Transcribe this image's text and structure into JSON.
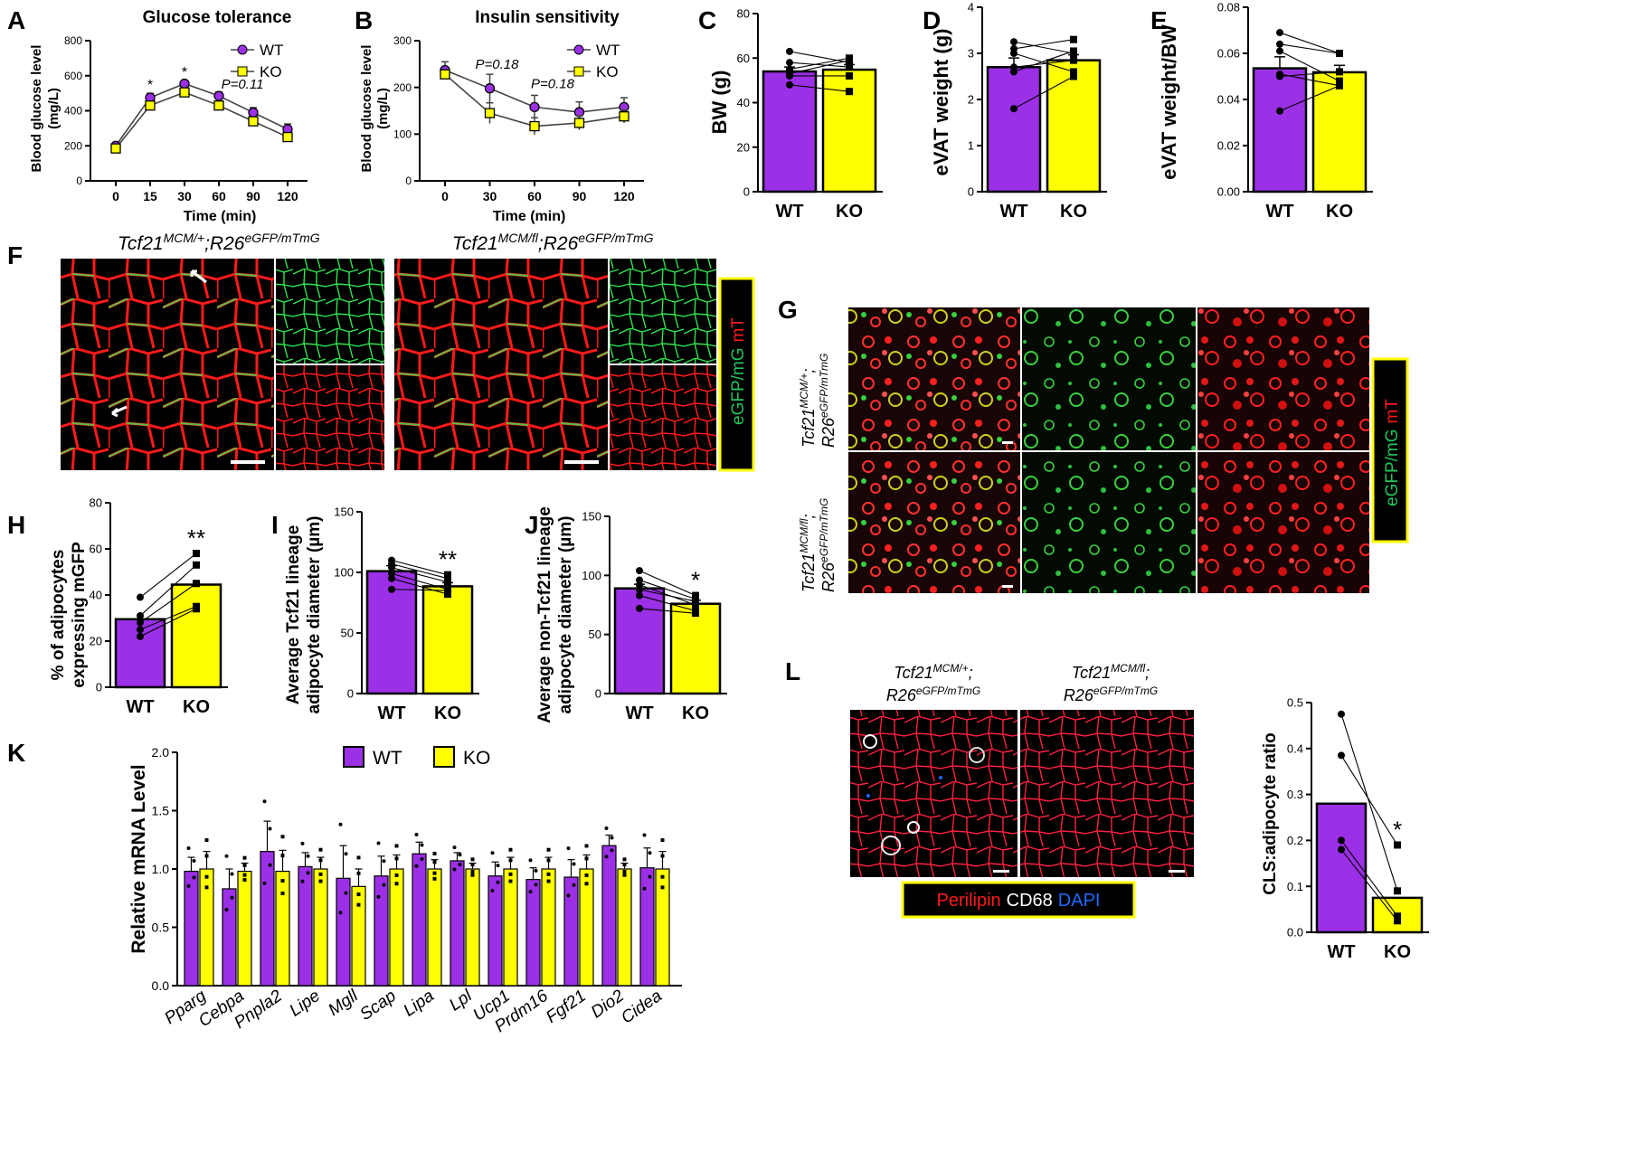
{
  "colors": {
    "wt": "#9b30e6",
    "ko": "#ffff00",
    "box": "#ffff00",
    "red": "#ff1a1a",
    "green": "#22c55e",
    "blue": "#1e6bff",
    "white": "#ffffff"
  },
  "panels": {
    "A": {
      "letter": "A",
      "title": "Glucose tolerance",
      "ylabel": "Blood glucose level",
      "yunit": "(mg/L)",
      "xlabel": "Time (min)",
      "annotation": "P=0.11",
      "star": "*"
    },
    "B": {
      "letter": "B",
      "title": "Insulin sensitivity",
      "ylabel": "Blood glucose level",
      "yunit": "(mg/L)",
      "xlabel": "Time (min)",
      "ann1": "P=0.18",
      "ann2": "P=0.18"
    },
    "C": {
      "letter": "C",
      "ylabel": "BW (g)"
    },
    "D": {
      "letter": "D",
      "ylabel": "eVAT weight (g)"
    },
    "E": {
      "letter": "E",
      "ylabel": "eVAT weight/BW"
    },
    "F": {
      "letter": "F",
      "label1": "Tcf21",
      "sup1a": "MCM/+",
      "mid1": ";R26",
      "sup1b": "eGFP/mTmG",
      "label2": "Tcf21",
      "sup2a": "MCM/fl",
      "mid2": ";R26",
      "sup2b": "eGFP/mTmG",
      "legend_a": "eGFP/mG",
      "legend_b": "mT"
    },
    "G": {
      "letter": "G",
      "row1a": "Tcf21",
      "row1a_sup": "MCM/+",
      "row1b": "R26",
      "row1b_sup": "eGFP/mTmG",
      "row2a": "Tcf21",
      "row2a_sup": "MCM/fl",
      "row2b": "R26",
      "row2b_sup": "eGFP/mTmG",
      "legend_a": "eGFP/mG",
      "legend_b": "mT"
    },
    "H": {
      "letter": "H",
      "ylabel1": "% of adipocytes",
      "ylabel2": "expressing mGFP",
      "star": "**"
    },
    "I": {
      "letter": "I",
      "ylabel1": "Average Tcf21 lineage",
      "ylabel2": "adipocyte diameter (µm)",
      "star": "**"
    },
    "J": {
      "letter": "J",
      "ylabel1": "Average non-Tcf21 lineage",
      "ylabel2": "adipocyte diameter (µm)",
      "star": "*"
    },
    "K": {
      "letter": "K",
      "ylabel": "Relative mRNA Level",
      "legend_wt": "WT",
      "legend_ko": "KO"
    },
    "L": {
      "letter": "L",
      "label1a": "Tcf21",
      "label1a_sup": "MCM/+",
      "label1b": "R26",
      "label1b_sup": "eGFP/mTmG",
      "label2a": "Tcf21",
      "label2a_sup": "MCM/fl",
      "label2b": "R26",
      "label2b_sup": "eGFP/mTmG",
      "legend_a": "Perilipin",
      "legend_b": "CD68",
      "legend_c": "DAPI",
      "ylabel": "CLS:adipocyte ratio",
      "star": "*"
    }
  },
  "chart_data": [
    {
      "id": "A",
      "type": "line",
      "x": [
        0,
        15,
        30,
        60,
        90,
        120
      ],
      "xticks": [
        "0",
        "15",
        "30",
        "60",
        "90",
        "120"
      ],
      "ylim": [
        0,
        800
      ],
      "yticks": [
        "0",
        "200",
        "400",
        "600",
        "800"
      ],
      "series": [
        {
          "name": "WT",
          "values": [
            200,
            475,
            555,
            485,
            390,
            295
          ],
          "err": [
            15,
            25,
            18,
            22,
            28,
            30
          ]
        },
        {
          "name": "KO",
          "values": [
            185,
            430,
            505,
            430,
            340,
            250
          ],
          "err": [
            12,
            15,
            15,
            18,
            20,
            20
          ]
        }
      ]
    },
    {
      "id": "B",
      "type": "line",
      "x": [
        0,
        30,
        60,
        90,
        120
      ],
      "xticks": [
        "0",
        "30",
        "60",
        "90",
        "120"
      ],
      "ylim": [
        0,
        300
      ],
      "yticks": [
        "0",
        "100",
        "200",
        "300"
      ],
      "series": [
        {
          "name": "WT",
          "values": [
            237,
            198,
            158,
            147,
            158
          ],
          "err": [
            18,
            30,
            25,
            22,
            20
          ]
        },
        {
          "name": "KO",
          "values": [
            228,
            145,
            117,
            124,
            138
          ],
          "err": [
            10,
            22,
            18,
            15,
            14
          ]
        }
      ]
    },
    {
      "id": "C",
      "type": "bar",
      "categories": [
        "WT",
        "KO"
      ],
      "ylim": [
        0,
        80
      ],
      "yticks": [
        "0",
        "20",
        "40",
        "60",
        "80"
      ],
      "values": [
        54,
        54.8
      ],
      "err": [
        2.0,
        2.3
      ],
      "pairs": [
        [
          63,
          58
        ],
        [
          58,
          56
        ],
        [
          55,
          60
        ],
        [
          53,
          59
        ],
        [
          52,
          52
        ],
        [
          48,
          45
        ]
      ]
    },
    {
      "id": "D",
      "type": "bar",
      "categories": [
        "WT",
        "KO"
      ],
      "ylim": [
        0,
        4
      ],
      "yticks": [
        "0",
        "1",
        "2",
        "3",
        "4"
      ],
      "values": [
        2.7,
        2.85
      ],
      "err": [
        0.2,
        0.12
      ],
      "pairs": [
        [
          3.25,
          3.0
        ],
        [
          3.1,
          3.3
        ],
        [
          3.0,
          2.6
        ],
        [
          2.7,
          2.85
        ],
        [
          2.6,
          3.05
        ],
        [
          1.8,
          2.5
        ]
      ]
    },
    {
      "id": "E",
      "type": "bar",
      "categories": [
        "WT",
        "KO"
      ],
      "ylim": [
        0,
        0.08
      ],
      "yticks": [
        "0.00",
        "0.02",
        "0.04",
        "0.06",
        "0.08"
      ],
      "values": [
        0.0535,
        0.0518
      ],
      "err": [
        0.005,
        0.003
      ],
      "pairs": [
        [
          0.069,
          0.06
        ],
        [
          0.064,
          0.06
        ],
        [
          0.061,
          0.048
        ],
        [
          0.051,
          0.046
        ],
        [
          0.05,
          0.052
        ],
        [
          0.035,
          0.046
        ]
      ]
    },
    {
      "id": "H",
      "type": "bar",
      "categories": [
        "WT",
        "KO"
      ],
      "ylim": [
        0,
        80
      ],
      "yticks": [
        "0",
        "20",
        "40",
        "60",
        "80"
      ],
      "values": [
        29.5,
        44.5
      ],
      "err": [
        0,
        0
      ],
      "pairs": [
        [
          39,
          58
        ],
        [
          31,
          53
        ],
        [
          28,
          45
        ],
        [
          25,
          35
        ],
        [
          22,
          34
        ]
      ]
    },
    {
      "id": "I",
      "type": "bar",
      "categories": [
        "WT",
        "KO"
      ],
      "ylim": [
        0,
        150
      ],
      "yticks": [
        "0",
        "50",
        "100",
        "150"
      ],
      "values": [
        101,
        88.5
      ],
      "err": [
        4.5,
        3.0
      ],
      "pairs": [
        [
          110,
          98
        ],
        [
          107,
          95
        ],
        [
          104,
          92
        ],
        [
          99,
          86
        ],
        [
          95,
          82
        ],
        [
          86,
          85
        ]
      ]
    },
    {
      "id": "J",
      "type": "bar",
      "categories": [
        "WT",
        "KO"
      ],
      "ylim": [
        0,
        150
      ],
      "yticks": [
        "0",
        "50",
        "100",
        "150"
      ],
      "values": [
        89,
        76
      ],
      "err": [
        3.5,
        3.0
      ],
      "pairs": [
        [
          104,
          83
        ],
        [
          96,
          80
        ],
        [
          92,
          75
        ],
        [
          88,
          78
        ],
        [
          83,
          70
        ],
        [
          72,
          68
        ]
      ]
    },
    {
      "id": "L",
      "type": "bar",
      "categories": [
        "WT",
        "KO"
      ],
      "ylim": [
        0,
        0.5
      ],
      "yticks": [
        "0.0",
        "0.1",
        "0.2",
        "0.3",
        "0.4",
        "0.5"
      ],
      "values": [
        0.28,
        0.075
      ],
      "err": [
        0,
        0
      ],
      "pairs": [
        [
          0.475,
          0.09
        ],
        [
          0.385,
          0.19
        ],
        [
          0.2,
          0.035
        ],
        [
          0.18,
          0.025
        ]
      ]
    },
    {
      "id": "K",
      "type": "bar",
      "categories": [
        "Pparg",
        "Cebpa",
        "Pnpla2",
        "Lipe",
        "Mgll",
        "Scap",
        "Lipa",
        "Lpl",
        "Ucp1",
        "Prdm16",
        "Fgf21",
        "Dio2",
        "Cidea"
      ],
      "ylim": [
        0,
        2.0
      ],
      "yticks": [
        "0.0",
        "0.5",
        "1.0",
        "1.5",
        "2.0"
      ],
      "series": [
        {
          "name": "WT",
          "values": [
            0.98,
            0.83,
            1.15,
            1.02,
            0.92,
            0.94,
            1.13,
            1.07,
            0.94,
            0.91,
            0.93,
            1.2,
            1.01
          ],
          "err": [
            0.12,
            0.17,
            0.26,
            0.12,
            0.28,
            0.17,
            0.1,
            0.07,
            0.12,
            0.1,
            0.15,
            0.09,
            0.17
          ]
        },
        {
          "name": "KO",
          "values": [
            1.0,
            0.98,
            0.98,
            1.0,
            0.85,
            1.0,
            1.0,
            1.0,
            1.0,
            1.0,
            1.0,
            1.0,
            1.0
          ],
          "err": [
            0.15,
            0.07,
            0.18,
            0.1,
            0.15,
            0.12,
            0.08,
            0.05,
            0.1,
            0.1,
            0.12,
            0.05,
            0.15
          ]
        }
      ]
    }
  ]
}
